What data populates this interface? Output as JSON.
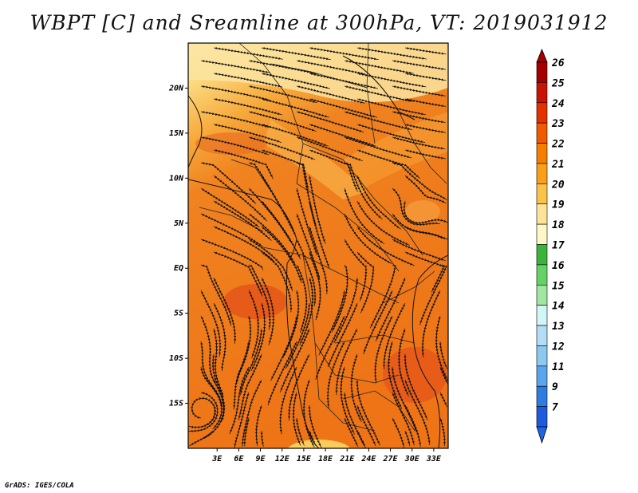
{
  "title": "WBPT [C] and Sreamline at 300hPa, VT: 2019031912",
  "credit": "GrADS: IGES/COLA",
  "map": {
    "lon_range": [
      -1,
      35
    ],
    "lat_range": [
      -20,
      25
    ],
    "y_ticks": [
      {
        "lat": 20,
        "label": "20N"
      },
      {
        "lat": 15,
        "label": "15N"
      },
      {
        "lat": 10,
        "label": "10N"
      },
      {
        "lat": 5,
        "label": "5N"
      },
      {
        "lat": 0,
        "label": "EQ"
      },
      {
        "lat": -5,
        "label": "5S"
      },
      {
        "lat": -10,
        "label": "10S"
      },
      {
        "lat": -15,
        "label": "15S"
      }
    ],
    "x_ticks": [
      {
        "lon": 3,
        "label": "3E"
      },
      {
        "lon": 6,
        "label": "6E"
      },
      {
        "lon": 9,
        "label": "9E"
      },
      {
        "lon": 12,
        "label": "12E"
      },
      {
        "lon": 15,
        "label": "15E"
      },
      {
        "lon": 18,
        "label": "18E"
      },
      {
        "lon": 21,
        "label": "21E"
      },
      {
        "lon": 24,
        "label": "24E"
      },
      {
        "lon": 27,
        "label": "27E"
      },
      {
        "lon": 30,
        "label": "30E"
      },
      {
        "lon": 33,
        "label": "33E"
      }
    ]
  },
  "colorbar": {
    "levels": [
      "26",
      "25",
      "24",
      "23",
      "22",
      "21",
      "20",
      "19",
      "18",
      "17",
      "16",
      "15",
      "14",
      "13",
      "12",
      "11",
      "9",
      "7"
    ],
    "colors": [
      "#a50000",
      "#c81400",
      "#e13200",
      "#f05a00",
      "#f57d00",
      "#f9a018",
      "#fbc24a",
      "#fde39a",
      "#fdf7c5",
      "#3cb43c",
      "#64d264",
      "#a0e6a0",
      "#d2f5f5",
      "#b4dcf5",
      "#8cc8f0",
      "#5aa5eb",
      "#2d7de1",
      "#1e5adc"
    ],
    "top_color": "#a50000",
    "bottom_color": "#1e64e6"
  },
  "field_colors": {
    "north_band": "#fce8a8",
    "sahel_band": "#f8b84a",
    "main": "#ef7818",
    "hot": "#e85a14",
    "south_tip": "#fbd060"
  },
  "streamline_color": "#111111"
}
